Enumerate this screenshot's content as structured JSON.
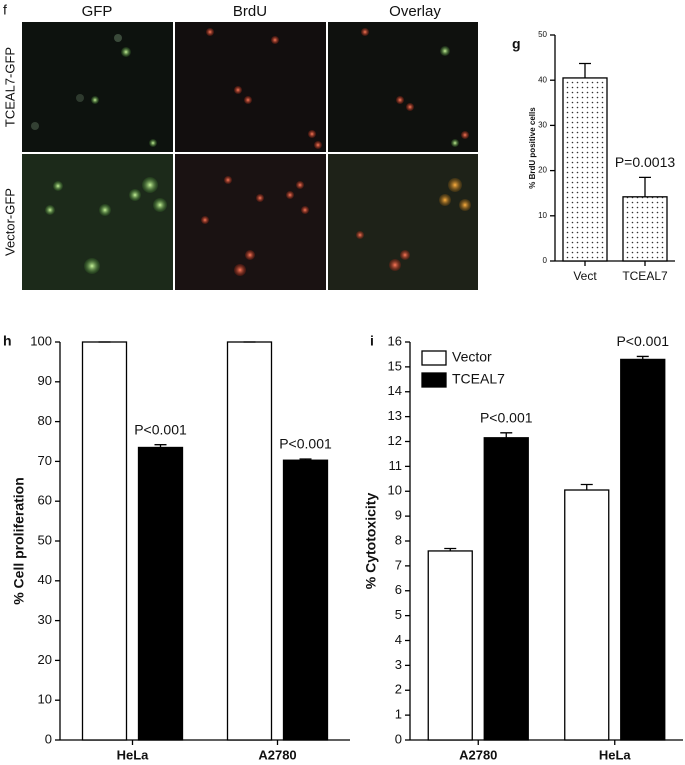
{
  "figure_f": {
    "panel": "f",
    "columns": [
      "GFP",
      "BrdU",
      "Overlay"
    ],
    "rows": [
      "TCEAL7-GFP",
      "Vector-GFP"
    ]
  },
  "chart_data": [
    {
      "type": "bar",
      "panel": "g",
      "y_label": "% BrdU positive cells",
      "categories": [
        "Vect",
        "TCEAL7"
      ],
      "values": [
        40.5,
        14.2
      ],
      "errors": [
        3.2,
        4.3
      ],
      "color": "#ffffff",
      "pattern": "dots",
      "annotations": [
        null,
        "P=0.0013"
      ],
      "ylim": [
        0,
        50
      ],
      "yticks": [
        0,
        10,
        20,
        30,
        40,
        50
      ]
    },
    {
      "type": "grouped_bar",
      "panel": "h",
      "y_label": "% Cell proliferation",
      "categories": [
        "HeLa",
        "A2780"
      ],
      "series": [
        {
          "color": "#ffffff",
          "values": [
            100,
            100
          ],
          "errors": [
            0,
            0
          ]
        },
        {
          "color": "#000000",
          "values": [
            73.5,
            70.3
          ],
          "errors": [
            0.7,
            0.3
          ]
        }
      ],
      "annotations": [
        "P<0.001",
        "P<0.001"
      ],
      "ylim": [
        0,
        100
      ],
      "yticks": [
        0,
        10,
        20,
        30,
        40,
        50,
        60,
        70,
        80,
        90,
        100
      ]
    },
    {
      "type": "grouped_bar",
      "panel": "i",
      "y_label": "% Cytotoxicity",
      "categories": [
        "A2780",
        "HeLa"
      ],
      "series": [
        {
          "name": "Vector",
          "color": "#ffffff",
          "values": [
            7.6,
            10.05
          ],
          "errors": [
            0.1,
            0.22
          ]
        },
        {
          "name": "TCEAL7",
          "color": "#000000",
          "values": [
            12.15,
            15.3
          ],
          "errors": [
            0.2,
            0.12
          ]
        }
      ],
      "annotations": [
        "P<0.001",
        "P<0.001"
      ],
      "legend": "upper left",
      "ylim": [
        0,
        16
      ],
      "yticks": [
        0,
        1,
        2,
        3,
        4,
        5,
        6,
        7,
        8,
        9,
        10,
        11,
        12,
        13,
        14,
        15,
        16
      ]
    }
  ]
}
